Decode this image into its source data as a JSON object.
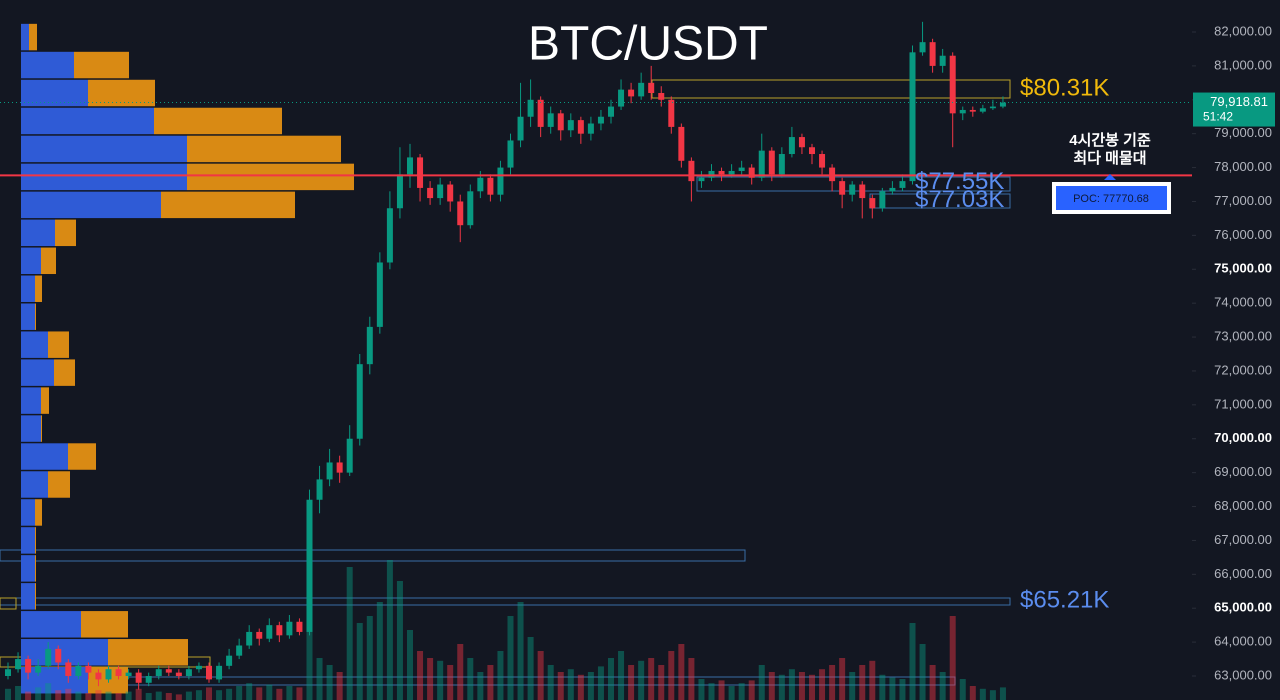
{
  "chart_data": {
    "type": "candlestick",
    "title": "BTC/USDT",
    "open": [
      63000,
      63200,
      63500,
      63100,
      63300,
      63800,
      63400,
      63000,
      63300,
      63100,
      62900,
      63200,
      63000,
      63100,
      62800,
      63000,
      63200,
      63100,
      63000,
      63200,
      63300,
      62900,
      63300,
      63600,
      63900,
      64300,
      64100,
      64500,
      64200,
      64600,
      64300,
      68200,
      68800,
      69300,
      69000,
      70000,
      72200,
      73300,
      75200,
      76800,
      77800,
      78300,
      77400,
      77100,
      77500,
      77000,
      76300,
      77300,
      77700,
      77200,
      78000,
      78800,
      79500,
      80000,
      79200,
      79600,
      79100,
      79400,
      79000,
      79300,
      79500,
      79800,
      80300,
      80100,
      80500,
      80200,
      80000,
      79200,
      78200,
      77600,
      77700,
      77900,
      77800,
      77900,
      78000,
      77700,
      78500,
      77800,
      78400,
      78900,
      78600,
      78400,
      78000,
      77600,
      77200,
      77500,
      77100,
      76800,
      77300,
      77400,
      77600,
      81400,
      81700,
      81000,
      81300,
      79600,
      79700,
      79650,
      79750,
      79800
    ],
    "high": [
      63400,
      63700,
      63600,
      63500,
      64000,
      63900,
      63500,
      63400,
      63400,
      63200,
      63300,
      63300,
      63200,
      63200,
      63100,
      63300,
      63300,
      63200,
      63300,
      63400,
      63400,
      63400,
      63800,
      64100,
      64500,
      64400,
      64700,
      64600,
      64800,
      64700,
      68500,
      69200,
      69700,
      69500,
      70400,
      72500,
      73600,
      75500,
      77300,
      78600,
      78700,
      78400,
      77600,
      77700,
      77600,
      77200,
      77500,
      77900,
      77800,
      78200,
      79000,
      80500,
      80600,
      80100,
      79800,
      79700,
      79600,
      79500,
      79500,
      79700,
      80000,
      80600,
      80500,
      80800,
      81000,
      80400,
      80100,
      79300,
      78300,
      77900,
      78100,
      78000,
      78100,
      78200,
      78100,
      79000,
      78600,
      78600,
      79200,
      79000,
      78700,
      78500,
      78100,
      77700,
      77600,
      77600,
      77200,
      77400,
      77600,
      77800,
      81600,
      82300,
      81800,
      81500,
      81400,
      79800,
      79800,
      79850,
      80000,
      80100
    ],
    "low": [
      62900,
      63100,
      62900,
      63000,
      63200,
      63200,
      62800,
      62900,
      62900,
      62700,
      62800,
      62900,
      62900,
      62600,
      62700,
      62900,
      63000,
      62900,
      62900,
      63100,
      62800,
      62800,
      63200,
      63500,
      63800,
      63900,
      64000,
      64000,
      64100,
      64200,
      64200,
      67800,
      68600,
      68700,
      68900,
      69800,
      71900,
      73100,
      75000,
      76500,
      77400,
      77000,
      76900,
      76900,
      76700,
      75800,
      76200,
      77100,
      77000,
      77000,
      77800,
      78600,
      79200,
      78900,
      79000,
      78800,
      78900,
      78700,
      78800,
      79100,
      79300,
      79700,
      79900,
      80000,
      80000,
      79800,
      79000,
      78000,
      77000,
      77400,
      77600,
      77600,
      77700,
      77800,
      77500,
      77600,
      77600,
      77700,
      78300,
      78400,
      78100,
      77800,
      77300,
      76800,
      77000,
      76500,
      76500,
      76700,
      77200,
      77300,
      77500,
      81300,
      80800,
      80800,
      78600,
      79400,
      79500,
      79600,
      79700,
      79750
    ],
    "close": [
      63200,
      63500,
      63100,
      63300,
      63800,
      63400,
      63000,
      63300,
      63100,
      62900,
      63200,
      63000,
      63100,
      62800,
      63000,
      63200,
      63100,
      63000,
      63200,
      63300,
      62900,
      63300,
      63600,
      63900,
      64300,
      64100,
      64500,
      64200,
      64600,
      64300,
      68200,
      68800,
      69300,
      69000,
      70000,
      72200,
      73300,
      75200,
      76800,
      77800,
      78300,
      77400,
      77100,
      77500,
      77000,
      76300,
      77300,
      77700,
      77200,
      78000,
      78800,
      79500,
      80000,
      79200,
      79600,
      79100,
      79400,
      79000,
      79300,
      79500,
      79800,
      80300,
      80100,
      80500,
      80200,
      80000,
      79200,
      78200,
      77600,
      77700,
      77900,
      77800,
      77900,
      78000,
      77700,
      78500,
      77800,
      78400,
      78900,
      78600,
      78400,
      78000,
      77600,
      77200,
      77500,
      77100,
      76800,
      77300,
      77400,
      77600,
      81400,
      81700,
      81000,
      81300,
      79600,
      79700,
      79650,
      79750,
      79800,
      79918.81
    ],
    "volume": [
      8,
      10,
      6,
      9,
      12,
      7,
      8,
      6,
      5,
      7,
      6,
      5,
      6,
      8,
      5,
      6,
      5,
      4,
      6,
      7,
      9,
      7,
      8,
      10,
      12,
      9,
      11,
      8,
      10,
      9,
      80,
      30,
      25,
      20,
      95,
      55,
      60,
      70,
      100,
      85,
      50,
      35,
      30,
      28,
      25,
      40,
      30,
      20,
      25,
      35,
      60,
      70,
      45,
      35,
      25,
      20,
      22,
      18,
      20,
      24,
      30,
      35,
      25,
      28,
      30,
      25,
      35,
      40,
      30,
      15,
      12,
      14,
      10,
      12,
      14,
      25,
      20,
      18,
      22,
      20,
      18,
      22,
      25,
      30,
      20,
      25,
      28,
      18,
      16,
      15,
      55,
      40,
      25,
      20,
      60,
      15,
      10,
      8,
      7,
      9
    ],
    "up_color": "#089981",
    "down_color": "#f23645",
    "ylim": [
      62292,
      82944
    ],
    "yticks": [
      {
        "value": 63000,
        "label": "63,000.00"
      },
      {
        "value": 64000,
        "label": "64,000.00"
      },
      {
        "value": 65000,
        "label": "65,000.00"
      },
      {
        "value": 66000,
        "label": "66,000.00"
      },
      {
        "value": 67000,
        "label": "67,000.00"
      },
      {
        "value": 68000,
        "label": "68,000.00"
      },
      {
        "value": 69000,
        "label": "69,000.00"
      },
      {
        "value": 70000,
        "label": "70,000.00"
      },
      {
        "value": 71000,
        "label": "71,000.00"
      },
      {
        "value": 72000,
        "label": "72,000.00"
      },
      {
        "value": 73000,
        "label": "73,000.00"
      },
      {
        "value": 74000,
        "label": "74,000.00"
      },
      {
        "value": 75000,
        "label": "75,000.00"
      },
      {
        "value": 76000,
        "label": "76,000.00"
      },
      {
        "value": 77000,
        "label": "77,000.00"
      },
      {
        "value": 78000,
        "label": "78,000.00"
      },
      {
        "value": 79000,
        "label": "79,000.00"
      },
      {
        "value": 80000,
        "label": "80,000.00"
      },
      {
        "value": 81000,
        "label": "81,000.00"
      },
      {
        "value": 82000,
        "label": "82,000.00"
      }
    ],
    "current_price": {
      "value": 79918.81,
      "label": "79,918.81"
    },
    "countdown": "51:42",
    "poc": {
      "value": 77770.68,
      "label": "POC: 77770.68"
    },
    "annotations": [
      {
        "value": 80310,
        "label": "$80.31K",
        "color": "#f0b90b"
      },
      {
        "value": 77550,
        "label": "$77.55K",
        "color": "#5b8def"
      },
      {
        "value": 77030,
        "label": "$77.03K",
        "color": "#5b8def"
      },
      {
        "value": 65210,
        "label": "$65.21K",
        "color": "#5b8def"
      }
    ],
    "note": [
      "4시간봉 기준",
      "최다 매물대"
    ],
    "volume_profile": {
      "price": [
        81850,
        81025,
        80200,
        79375,
        78550,
        77725,
        76900,
        76075,
        75250,
        74425,
        73600,
        72775,
        71950,
        71125,
        70300,
        69475,
        68650,
        67825,
        67000,
        66175,
        65350,
        64525,
        63700,
        62875
      ],
      "blue": [
        8,
        53,
        67,
        133,
        166,
        166,
        140,
        34,
        20,
        14,
        14,
        27,
        33,
        20,
        20,
        47,
        27,
        14,
        14,
        14,
        14,
        60,
        87,
        67
      ],
      "orange": [
        8,
        55,
        67,
        128,
        154,
        167,
        134,
        21,
        15,
        7,
        1,
        21,
        21,
        8,
        1,
        28,
        22,
        7,
        1,
        1,
        1,
        47,
        80,
        40
      ],
      "blue_color": "#2f5bd6",
      "orange_color": "#d98a14"
    }
  }
}
